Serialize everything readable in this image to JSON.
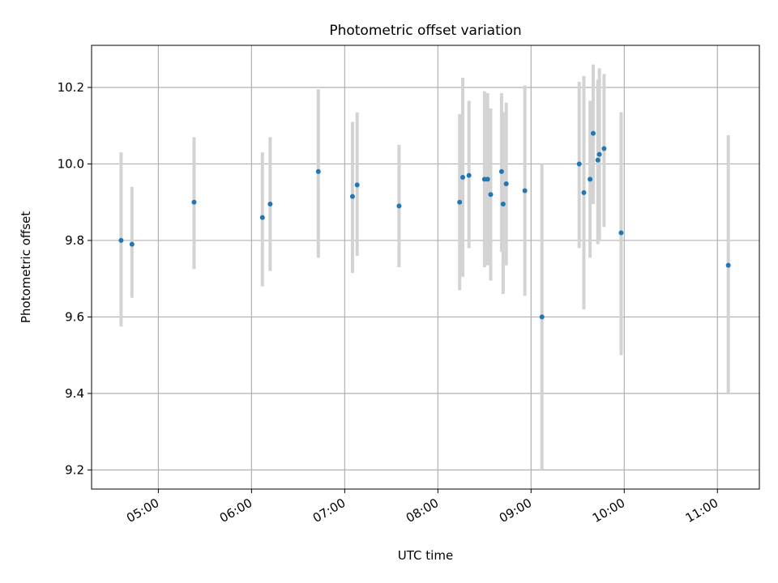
{
  "chart_data": {
    "type": "scatter",
    "title": "Photometric offset variation",
    "xlabel": "UTC time",
    "ylabel": "Photometric offset",
    "xlim": [
      "04:17",
      "11:27"
    ],
    "ylim": [
      9.15,
      10.31
    ],
    "x_ticks": [
      "05:00",
      "06:00",
      "07:00",
      "08:00",
      "09:00",
      "10:00",
      "11:00"
    ],
    "y_ticks": [
      "9.2",
      "9.4",
      "9.6",
      "9.8",
      "10.0",
      "10.2"
    ],
    "grid": true,
    "colors": {
      "points": "#1f77b4",
      "error_bars": "#d3d3d3",
      "grid": "#b0b0b0"
    },
    "points": [
      {
        "x": "04:36",
        "y": 9.8,
        "ylow": 9.575,
        "yhigh": 10.03
      },
      {
        "x": "04:43",
        "y": 9.79,
        "ylow": 9.65,
        "yhigh": 9.94
      },
      {
        "x": "05:23",
        "y": 9.9,
        "ylow": 9.725,
        "yhigh": 10.07
      },
      {
        "x": "06:07",
        "y": 9.86,
        "ylow": 9.68,
        "yhigh": 10.03
      },
      {
        "x": "06:12",
        "y": 9.895,
        "ylow": 9.72,
        "yhigh": 10.07
      },
      {
        "x": "06:43",
        "y": 9.98,
        "ylow": 9.755,
        "yhigh": 10.195
      },
      {
        "x": "07:05",
        "y": 9.915,
        "ylow": 9.715,
        "yhigh": 10.11
      },
      {
        "x": "07:08",
        "y": 9.945,
        "ylow": 9.76,
        "yhigh": 10.135
      },
      {
        "x": "07:35",
        "y": 9.89,
        "ylow": 9.73,
        "yhigh": 10.05
      },
      {
        "x": "08:14",
        "y": 9.9,
        "ylow": 9.67,
        "yhigh": 10.13
      },
      {
        "x": "08:16",
        "y": 9.965,
        "ylow": 9.705,
        "yhigh": 10.225
      },
      {
        "x": "08:20",
        "y": 9.97,
        "ylow": 9.78,
        "yhigh": 10.165
      },
      {
        "x": "08:30",
        "y": 9.96,
        "ylow": 9.73,
        "yhigh": 10.19
      },
      {
        "x": "08:32",
        "y": 9.96,
        "ylow": 9.735,
        "yhigh": 10.185
      },
      {
        "x": "08:34",
        "y": 9.92,
        "ylow": 9.695,
        "yhigh": 10.145
      },
      {
        "x": "08:41",
        "y": 9.98,
        "ylow": 9.77,
        "yhigh": 10.185
      },
      {
        "x": "08:42",
        "y": 9.895,
        "ylow": 9.66,
        "yhigh": 10.135
      },
      {
        "x": "08:44",
        "y": 9.948,
        "ylow": 9.735,
        "yhigh": 10.16
      },
      {
        "x": "08:56",
        "y": 9.93,
        "ylow": 9.655,
        "yhigh": 10.205
      },
      {
        "x": "09:07",
        "y": 9.6,
        "ylow": 9.2,
        "yhigh": 10.0
      },
      {
        "x": "09:31",
        "y": 10.0,
        "ylow": 9.78,
        "yhigh": 10.215
      },
      {
        "x": "09:34",
        "y": 9.925,
        "ylow": 9.62,
        "yhigh": 10.23
      },
      {
        "x": "09:38",
        "y": 9.96,
        "ylow": 9.755,
        "yhigh": 10.165
      },
      {
        "x": "09:40",
        "y": 10.08,
        "ylow": 9.895,
        "yhigh": 10.26
      },
      {
        "x": "09:43",
        "y": 10.01,
        "ylow": 9.79,
        "yhigh": 10.22
      },
      {
        "x": "09:44",
        "y": 10.025,
        "ylow": 9.8,
        "yhigh": 10.25
      },
      {
        "x": "09:47",
        "y": 10.04,
        "ylow": 9.835,
        "yhigh": 10.235
      },
      {
        "x": "09:58",
        "y": 9.82,
        "ylow": 9.5,
        "yhigh": 10.135
      },
      {
        "x": "11:07",
        "y": 9.735,
        "ylow": 9.4,
        "yhigh": 10.075
      }
    ]
  }
}
